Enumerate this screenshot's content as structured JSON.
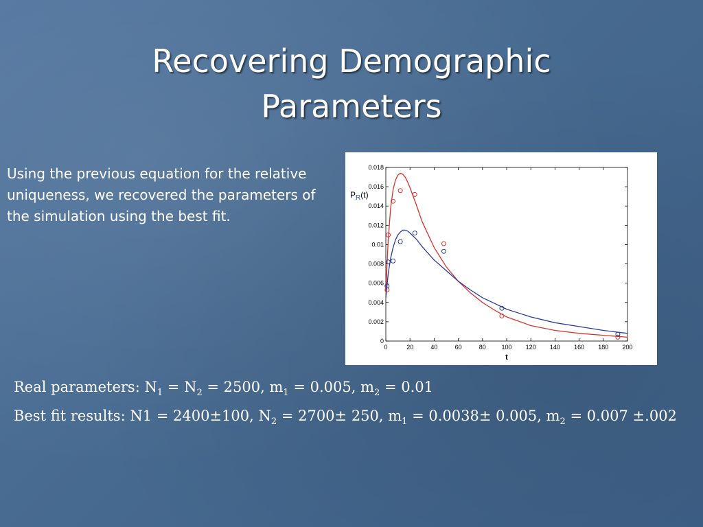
{
  "slide": {
    "title_line1": "Recovering Demographic",
    "title_line2": "Parameters",
    "body": "Using the previous equation for the relative uniqueness, we recovered the parameters of the simulation using the best fit."
  },
  "equations": {
    "real_label": "Real parameters:",
    "real_n1": "N",
    "real_n1_sub": "1",
    "real_eq1": " = N",
    "real_n2_sub": "2",
    "real_eq2": " = 2500, m",
    "real_m1_sub": "1",
    "real_eq3": " = 0.005, m",
    "real_m2_sub": "2",
    "real_eq4": " = 0.01",
    "fit_label": "Best fit results:",
    "fit_part1": "N1 = 2400±100, N",
    "fit_n2_sub": "2",
    "fit_part2": " = 2700± 250, m",
    "fit_m1_sub": "1",
    "fit_part3": " = 0.0038± 0.005, m",
    "fit_m2_sub": "2",
    "fit_part4": " = 0.007 ±.002"
  },
  "chart_data": {
    "type": "line",
    "title": "",
    "xlabel": "t",
    "ylabel_main": "P",
    "ylabel_sub": "R",
    "ylabel_tail": "(t)",
    "xlim": [
      0,
      200
    ],
    "ylim": [
      0,
      0.018
    ],
    "xticks": [
      "0",
      "20",
      "40",
      "60",
      "80",
      "100",
      "120",
      "140",
      "160",
      "180",
      "200"
    ],
    "yticks": [
      "0",
      "0.002",
      "0.004",
      "0.006",
      "0.008",
      "0.01",
      "0.012",
      "0.014",
      "0.016",
      "0.018"
    ],
    "grid": false,
    "series": [
      {
        "color": "#d9342b",
        "line": {
          "x": [
            0,
            1,
            2,
            4,
            6,
            8,
            10,
            12,
            14,
            16,
            18,
            20,
            25,
            30,
            40,
            50,
            60,
            70,
            80,
            90,
            100,
            120,
            140,
            160,
            180,
            200
          ],
          "y": [
            0.0048,
            0.008,
            0.0105,
            0.0138,
            0.0157,
            0.0167,
            0.0172,
            0.0174,
            0.0173,
            0.017,
            0.0165,
            0.0159,
            0.0142,
            0.0124,
            0.0097,
            0.0077,
            0.0062,
            0.005,
            0.004,
            0.0032,
            0.0025,
            0.0016,
            0.0011,
            0.0008,
            0.0006,
            0.0004
          ]
        },
        "points": {
          "x": [
            1,
            2,
            6,
            12,
            24,
            48,
            96,
            192
          ],
          "y": [
            0.0053,
            0.011,
            0.0145,
            0.0156,
            0.0152,
            0.0101,
            0.0026,
            0.0004
          ]
        }
      },
      {
        "color": "#2b3b9c",
        "line": {
          "x": [
            0,
            1,
            2,
            4,
            6,
            8,
            10,
            12,
            14,
            16,
            18,
            20,
            25,
            30,
            40,
            50,
            60,
            70,
            80,
            90,
            100,
            120,
            140,
            160,
            180,
            200
          ],
          "y": [
            0.0045,
            0.0058,
            0.007,
            0.0086,
            0.0097,
            0.0105,
            0.011,
            0.0113,
            0.0115,
            0.0115,
            0.0114,
            0.0112,
            0.0106,
            0.0098,
            0.0084,
            0.0073,
            0.0062,
            0.0053,
            0.0045,
            0.0039,
            0.0033,
            0.0025,
            0.0019,
            0.0015,
            0.0011,
            0.0008
          ]
        },
        "points": {
          "x": [
            1,
            2,
            6,
            12,
            24,
            48,
            96,
            192
          ],
          "y": [
            0.0057,
            0.0082,
            0.0083,
            0.0103,
            0.0112,
            0.0093,
            0.0034,
            0.0007
          ]
        }
      }
    ]
  }
}
